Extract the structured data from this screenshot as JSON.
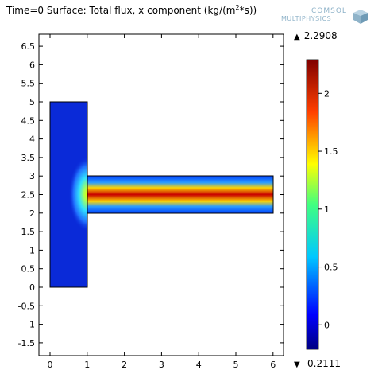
{
  "title": {
    "prefix": "Time=0  Surface: Total flux, x component (kg/(m",
    "sup": "2",
    "suffix": "*s))"
  },
  "logo": {
    "line1": "COMSOL",
    "line2": "MULTIPHYSICS"
  },
  "colorbar": {
    "max_label": "2.2908",
    "min_label": "-0.2111",
    "max": 2.2908,
    "min": -0.2111,
    "ticks": [
      0,
      0.5,
      1,
      1.5,
      2
    ],
    "tick_labels": [
      "0",
      "0.5",
      "1",
      "1.5",
      "2"
    ],
    "colormap": "rainbow (blue-cyan-green-yellow-red)"
  },
  "chart_data": {
    "type": "heatmap",
    "title": "Time=0  Surface: Total flux, x component (kg/(m^2*s))",
    "xlim": [
      -0.3,
      6.3
    ],
    "ylim": [
      -1.8,
      6.8
    ],
    "xticks": [
      0,
      1,
      2,
      3,
      4,
      5,
      6
    ],
    "yticks": [
      -1.5,
      -1,
      -0.5,
      0,
      0.5,
      1,
      1.5,
      2,
      2.5,
      3,
      3.5,
      4,
      4.5,
      5,
      5.5,
      6,
      6.5
    ],
    "xtick_labels": [
      "0",
      "1",
      "2",
      "3",
      "4",
      "5",
      "6"
    ],
    "ytick_labels": [
      "-1.5",
      "-1",
      "-0.5",
      "0",
      "0.5",
      "1",
      "1.5",
      "2",
      "2.5",
      "3",
      "3.5",
      "4",
      "4.5",
      "5",
      "5.5",
      "6",
      "6.5"
    ],
    "grid": false,
    "domains": [
      {
        "name": "vertical block",
        "x": [
          0,
          1
        ],
        "y": [
          0,
          5
        ],
        "value_range": [
          -0.2,
          2.29
        ]
      },
      {
        "name": "horizontal channel",
        "x": [
          1,
          6
        ],
        "y": [
          2,
          3
        ],
        "centerline_value": 2.2908,
        "wall_value": 0
      }
    ],
    "value_range": [
      -0.2111,
      2.2908
    ]
  },
  "colors": {
    "low": "#000080",
    "high": "#800000"
  }
}
